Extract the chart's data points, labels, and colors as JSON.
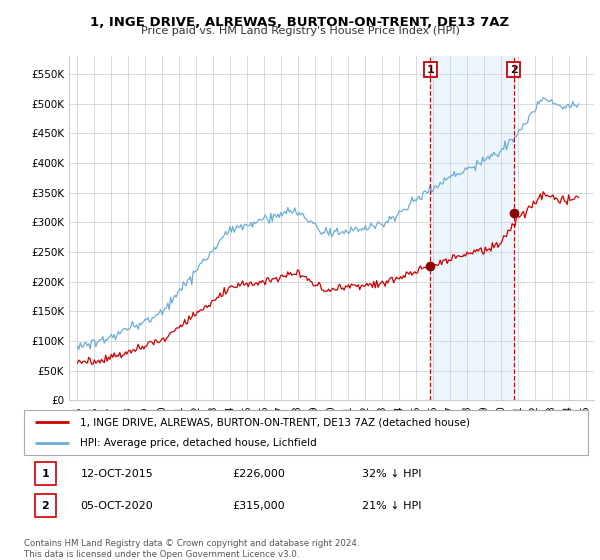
{
  "title": "1, INGE DRIVE, ALREWAS, BURTON-ON-TRENT, DE13 7AZ",
  "subtitle": "Price paid vs. HM Land Registry's House Price Index (HPI)",
  "ylabel_ticks": [
    "£0",
    "£50K",
    "£100K",
    "£150K",
    "£200K",
    "£250K",
    "£300K",
    "£350K",
    "£400K",
    "£450K",
    "£500K",
    "£550K"
  ],
  "ytick_values": [
    0,
    50000,
    100000,
    150000,
    200000,
    250000,
    300000,
    350000,
    400000,
    450000,
    500000,
    550000
  ],
  "ylim": [
    0,
    580000
  ],
  "xlim_start": 1994.5,
  "xlim_end": 2025.5,
  "xtick_years": [
    1995,
    1996,
    1997,
    1998,
    1999,
    2000,
    2001,
    2002,
    2003,
    2004,
    2005,
    2006,
    2007,
    2008,
    2009,
    2010,
    2011,
    2012,
    2013,
    2014,
    2015,
    2016,
    2017,
    2018,
    2019,
    2020,
    2021,
    2022,
    2023,
    2024,
    2025
  ],
  "hpi_color": "#6baed6",
  "price_color": "#cc0000",
  "marker_color": "#8b0000",
  "grid_color": "#cccccc",
  "bg_color": "#ffffff",
  "legend_label_price": "1, INGE DRIVE, ALREWAS, BURTON-ON-TRENT, DE13 7AZ (detached house)",
  "legend_label_hpi": "HPI: Average price, detached house, Lichfield",
  "transaction1_date": "12-OCT-2015",
  "transaction1_price": "£226,000",
  "transaction1_note": "32% ↓ HPI",
  "transaction2_date": "05-OCT-2020",
  "transaction2_price": "£315,000",
  "transaction2_note": "21% ↓ HPI",
  "footnote": "Contains HM Land Registry data © Crown copyright and database right 2024.\nThis data is licensed under the Open Government Licence v3.0.",
  "transaction1_year": 2015.83,
  "transaction2_year": 2020.75,
  "transaction1_price_val": 226000,
  "transaction2_price_val": 315000,
  "vline_color": "#dd0000",
  "vline_style": "--",
  "span_color": "#ddeeff",
  "span_alpha": 0.5
}
